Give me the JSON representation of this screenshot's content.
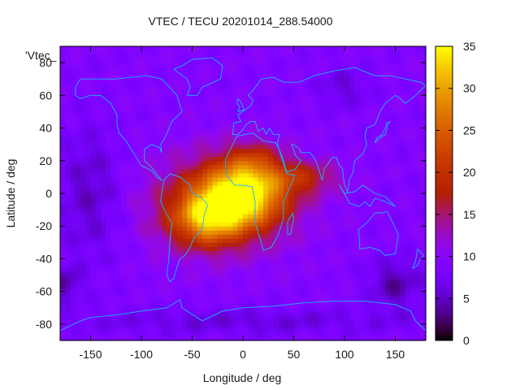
{
  "chart_data": {
    "type": "heatmap",
    "title": "VTEC / TECU 20201014_288.54000",
    "xlabel": "Longitude / deg",
    "ylabel": "Latitude / deg",
    "key_label": "'Vtec_",
    "xlim": [
      -180,
      180
    ],
    "ylim": [
      -90,
      90
    ],
    "x_ticks": [
      "-150",
      "-100",
      "-50",
      "0",
      "50",
      "100",
      "150"
    ],
    "x_tick_values": [
      -150,
      -100,
      -50,
      0,
      50,
      100,
      150
    ],
    "y_ticks": [
      "-80",
      "-60",
      "-40",
      "-20",
      "0",
      "20",
      "40",
      "60",
      "80"
    ],
    "y_tick_values": [
      -80,
      -60,
      -40,
      -20,
      0,
      20,
      40,
      60,
      80
    ],
    "colorbar": {
      "range": [
        0,
        35
      ],
      "ticks": [
        "0",
        "5",
        "10",
        "15",
        "20",
        "25",
        "30",
        "35"
      ],
      "tick_values": [
        0,
        5,
        10,
        15,
        20,
        25,
        30,
        35
      ],
      "colormap": "gnuplot-pm3d-black-blue-purple-red-orange-yellow"
    },
    "grid_resolution_deg": {
      "lon": 5,
      "lat": 2.5
    },
    "background_level": 9,
    "features": [
      {
        "name": "equatorial-anomaly-core",
        "lon": 0,
        "lat": 0,
        "lon_width": 40,
        "lat_width": 18,
        "value": 22
      },
      {
        "name": "south-atlantic-peak",
        "lon": -35,
        "lat": -15,
        "lon_width": 35,
        "lat_width": 16,
        "value": 16
      },
      {
        "name": "broad-daytime-bulge",
        "lon": -20,
        "lat": -5,
        "lon_width": 70,
        "lat_width": 30,
        "value": 9
      },
      {
        "name": "east-tongue",
        "lon": 60,
        "lat": 10,
        "lon_width": 35,
        "lat_width": 10,
        "value": 7
      },
      {
        "name": "north-africa-lobe",
        "lon": 10,
        "lat": 20,
        "lon_width": 25,
        "lat_width": 12,
        "value": 6
      },
      {
        "name": "pacific-night-minimum",
        "lon": -150,
        "lat": 0,
        "lon_width": 30,
        "lat_width": 40,
        "value": -4
      },
      {
        "name": "south-pacific-minimum",
        "lon": 150,
        "lat": -55,
        "lon_width": 25,
        "lat_width": 15,
        "value": -5
      },
      {
        "name": "southwest-minimum",
        "lon": -175,
        "lat": -55,
        "lon_width": 15,
        "lat_width": 10,
        "value": -5
      },
      {
        "name": "arctic-minimum",
        "lon": 100,
        "lat": 65,
        "lon_width": 25,
        "lat_width": 12,
        "value": -3
      },
      {
        "name": "antarctic-band",
        "lon": 0,
        "lat": -78,
        "lon_width": 180,
        "lat_width": 8,
        "value": -3
      }
    ],
    "coastlines": [
      {
        "name": "north-america",
        "closed": true,
        "points": [
          [
            -165,
            65
          ],
          [
            -160,
            70
          ],
          [
            -140,
            70
          ],
          [
            -125,
            70
          ],
          [
            -95,
            72
          ],
          [
            -80,
            70
          ],
          [
            -65,
            60
          ],
          [
            -60,
            50
          ],
          [
            -70,
            44
          ],
          [
            -76,
            35
          ],
          [
            -81,
            30
          ],
          [
            -80,
            25
          ],
          [
            -82,
            28
          ],
          [
            -90,
            30
          ],
          [
            -97,
            27
          ],
          [
            -97,
            20
          ],
          [
            -90,
            16
          ],
          [
            -85,
            12
          ],
          [
            -80,
            8
          ],
          [
            -85,
            10
          ],
          [
            -90,
            14
          ],
          [
            -100,
            17
          ],
          [
            -106,
            23
          ],
          [
            -112,
            29
          ],
          [
            -115,
            32
          ],
          [
            -118,
            34
          ],
          [
            -122,
            37
          ],
          [
            -124,
            42
          ],
          [
            -124,
            48
          ],
          [
            -130,
            55
          ],
          [
            -140,
            60
          ],
          [
            -150,
            60
          ],
          [
            -160,
            58
          ],
          [
            -165,
            60
          ]
        ]
      },
      {
        "name": "south-america",
        "closed": true,
        "points": [
          [
            -78,
            8
          ],
          [
            -72,
            12
          ],
          [
            -62,
            10
          ],
          [
            -52,
            5
          ],
          [
            -50,
            0
          ],
          [
            -40,
            -3
          ],
          [
            -35,
            -7
          ],
          [
            -38,
            -13
          ],
          [
            -40,
            -22
          ],
          [
            -48,
            -27
          ],
          [
            -52,
            -33
          ],
          [
            -57,
            -38
          ],
          [
            -62,
            -40
          ],
          [
            -65,
            -45
          ],
          [
            -68,
            -52
          ],
          [
            -72,
            -54
          ],
          [
            -75,
            -50
          ],
          [
            -73,
            -40
          ],
          [
            -72,
            -30
          ],
          [
            -70,
            -18
          ],
          [
            -76,
            -12
          ],
          [
            -81,
            -5
          ],
          [
            -80,
            0
          ],
          [
            -78,
            8
          ]
        ]
      },
      {
        "name": "greenland",
        "closed": true,
        "points": [
          [
            -55,
            60
          ],
          [
            -45,
            60
          ],
          [
            -40,
            65
          ],
          [
            -22,
            70
          ],
          [
            -20,
            78
          ],
          [
            -30,
            83
          ],
          [
            -50,
            82
          ],
          [
            -60,
            78
          ],
          [
            -68,
            76
          ],
          [
            -55,
            70
          ],
          [
            -52,
            65
          ],
          [
            -55,
            60
          ]
        ]
      },
      {
        "name": "eurasia",
        "closed": true,
        "points": [
          [
            -10,
            36
          ],
          [
            -9,
            43
          ],
          [
            -2,
            44
          ],
          [
            -5,
            48
          ],
          [
            2,
            51
          ],
          [
            8,
            54
          ],
          [
            10,
            57
          ],
          [
            5,
            60
          ],
          [
            10,
            63
          ],
          [
            18,
            70
          ],
          [
            30,
            71
          ],
          [
            40,
            68
          ],
          [
            55,
            68
          ],
          [
            70,
            72
          ],
          [
            90,
            75
          ],
          [
            110,
            77
          ],
          [
            130,
            72
          ],
          [
            145,
            72
          ],
          [
            160,
            70
          ],
          [
            175,
            68
          ],
          [
            180,
            66
          ],
          [
            170,
            60
          ],
          [
            160,
            55
          ],
          [
            155,
            58
          ],
          [
            150,
            60
          ],
          [
            140,
            55
          ],
          [
            135,
            50
          ],
          [
            130,
            42
          ],
          [
            122,
            40
          ],
          [
            120,
            35
          ],
          [
            122,
            30
          ],
          [
            118,
            24
          ],
          [
            110,
            20
          ],
          [
            108,
            12
          ],
          [
            105,
            9
          ],
          [
            103,
            1
          ],
          [
            100,
            5
          ],
          [
            98,
            15
          ],
          [
            95,
            17
          ],
          [
            92,
            22
          ],
          [
            88,
            22
          ],
          [
            80,
            15
          ],
          [
            78,
            8
          ],
          [
            73,
            18
          ],
          [
            70,
            22
          ],
          [
            66,
            25
          ],
          [
            57,
            25
          ],
          [
            56,
            27
          ],
          [
            50,
            30
          ],
          [
            48,
            30
          ],
          [
            52,
            23
          ],
          [
            57,
            20
          ],
          [
            52,
            15
          ],
          [
            43,
            13
          ],
          [
            40,
            20
          ],
          [
            35,
            28
          ],
          [
            34,
            31
          ],
          [
            36,
            36
          ],
          [
            30,
            36
          ],
          [
            26,
            40
          ],
          [
            23,
            36
          ],
          [
            20,
            40
          ],
          [
            15,
            38
          ],
          [
            12,
            44
          ],
          [
            8,
            44
          ],
          [
            3,
            42
          ],
          [
            0,
            39
          ],
          [
            -5,
            36
          ],
          [
            -10,
            36
          ]
        ]
      },
      {
        "name": "africa",
        "closed": true,
        "points": [
          [
            -17,
            21
          ],
          [
            -10,
            30
          ],
          [
            -6,
            35
          ],
          [
            10,
            37
          ],
          [
            20,
            32
          ],
          [
            32,
            31
          ],
          [
            35,
            28
          ],
          [
            43,
            12
          ],
          [
            51,
            11
          ],
          [
            45,
            2
          ],
          [
            40,
            -5
          ],
          [
            40,
            -15
          ],
          [
            35,
            -25
          ],
          [
            28,
            -33
          ],
          [
            20,
            -35
          ],
          [
            18,
            -30
          ],
          [
            12,
            -18
          ],
          [
            12,
            -5
          ],
          [
            9,
            4
          ],
          [
            0,
            5
          ],
          [
            -8,
            5
          ],
          [
            -15,
            10
          ],
          [
            -17,
            15
          ],
          [
            -17,
            21
          ]
        ]
      },
      {
        "name": "australia",
        "closed": true,
        "points": [
          [
            114,
            -22
          ],
          [
            122,
            -18
          ],
          [
            130,
            -12
          ],
          [
            137,
            -12
          ],
          [
            142,
            -11
          ],
          [
            145,
            -15
          ],
          [
            153,
            -25
          ],
          [
            150,
            -37
          ],
          [
            140,
            -38
          ],
          [
            135,
            -35
          ],
          [
            125,
            -33
          ],
          [
            115,
            -34
          ],
          [
            114,
            -22
          ]
        ]
      },
      {
        "name": "antarctica",
        "closed": false,
        "points": [
          [
            -180,
            -84
          ],
          [
            -160,
            -78
          ],
          [
            -150,
            -76
          ],
          [
            -120,
            -74
          ],
          [
            -100,
            -72
          ],
          [
            -75,
            -70
          ],
          [
            -62,
            -65
          ],
          [
            -60,
            -70
          ],
          [
            -40,
            -78
          ],
          [
            -20,
            -72
          ],
          [
            0,
            -70
          ],
          [
            30,
            -69
          ],
          [
            60,
            -67
          ],
          [
            90,
            -66
          ],
          [
            120,
            -66
          ],
          [
            150,
            -68
          ],
          [
            165,
            -72
          ],
          [
            170,
            -78
          ],
          [
            180,
            -84
          ]
        ]
      },
      {
        "name": "japan",
        "closed": true,
        "points": [
          [
            130,
            31
          ],
          [
            135,
            34
          ],
          [
            140,
            36
          ],
          [
            142,
            40
          ],
          [
            141,
            43
          ],
          [
            145,
            44
          ],
          [
            140,
            40
          ],
          [
            137,
            36
          ],
          [
            132,
            34
          ],
          [
            130,
            31
          ]
        ]
      },
      {
        "name": "uk",
        "closed": true,
        "points": [
          [
            -5,
            50
          ],
          [
            1,
            51
          ],
          [
            0,
            53
          ],
          [
            -2,
            56
          ],
          [
            -5,
            58
          ],
          [
            -6,
            55
          ],
          [
            -3,
            53
          ],
          [
            -5,
            50
          ]
        ]
      },
      {
        "name": "madagascar",
        "closed": true,
        "points": [
          [
            44,
            -25
          ],
          [
            47,
            -25
          ],
          [
            50,
            -15
          ],
          [
            49,
            -12
          ],
          [
            44,
            -17
          ],
          [
            44,
            -25
          ]
        ]
      },
      {
        "name": "new-zealand",
        "closed": true,
        "points": [
          [
            172,
            -34
          ],
          [
            178,
            -38
          ],
          [
            174,
            -41
          ],
          [
            172,
            -44
          ],
          [
            167,
            -46
          ],
          [
            170,
            -41
          ],
          [
            172,
            -34
          ]
        ]
      },
      {
        "name": "indonesia",
        "closed": true,
        "points": [
          [
            95,
            5
          ],
          [
            105,
            -6
          ],
          [
            115,
            -8
          ],
          [
            120,
            -5
          ],
          [
            125,
            -8
          ],
          [
            130,
            -3
          ],
          [
            140,
            -5
          ],
          [
            150,
            -8
          ],
          [
            140,
            -2
          ],
          [
            130,
            0
          ],
          [
            118,
            5
          ],
          [
            110,
            1
          ],
          [
            100,
            0
          ],
          [
            95,
            5
          ]
        ]
      }
    ]
  }
}
